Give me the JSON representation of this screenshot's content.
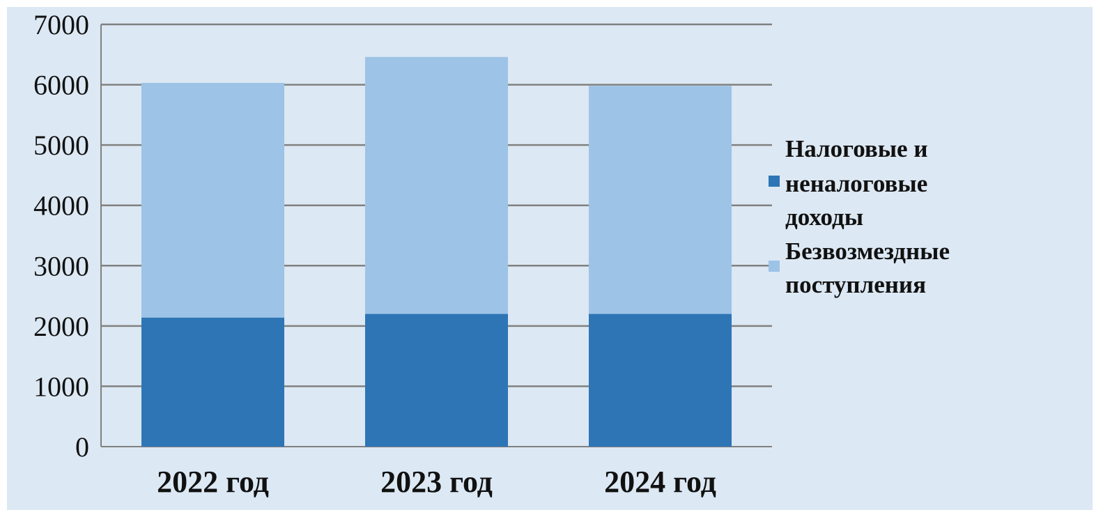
{
  "chart_data": {
    "type": "bar",
    "stacked": true,
    "categories": [
      "2022 год",
      "2023 год",
      "2024 год"
    ],
    "series": [
      {
        "name": "Налоговые и неналоговые доходы",
        "values": [
          2140,
          2200,
          2200
        ],
        "color": "#2e75b6"
      },
      {
        "name": "Безвозмездные поступления",
        "values": [
          3890,
          4260,
          3780
        ],
        "color": "#9dc3e6"
      }
    ],
    "title": "",
    "xlabel": "",
    "ylabel": "",
    "ylim": [
      0,
      7000
    ],
    "yticks": [
      0,
      1000,
      2000,
      3000,
      4000,
      5000,
      6000,
      7000
    ],
    "ytick_labels": [
      "0",
      "1000",
      "2000",
      "3000",
      "4000",
      "5000",
      "6000",
      "7000"
    ],
    "grid": true,
    "legend_position": "right",
    "legend": [
      {
        "lines": [
          "Налоговые и",
          "неналоговые",
          "доходы"
        ],
        "color": "#2e75b6"
      },
      {
        "lines": [
          "Безвозмездные",
          "поступления"
        ],
        "color": "#9dc3e6"
      }
    ],
    "background": "#dce8f3",
    "gridline_color": "#808080"
  }
}
